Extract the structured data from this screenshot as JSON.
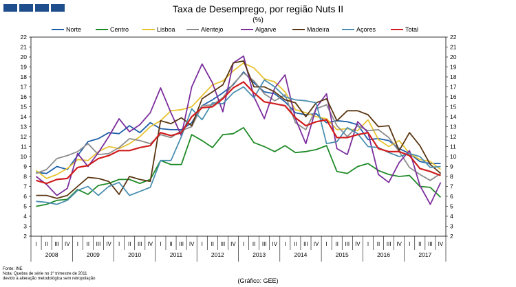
{
  "logo": {
    "name": "logo-blocks"
  },
  "chart_data": {
    "type": "line",
    "title": "Taxa de Desemprego, por região Nuts II",
    "unit": "(%)",
    "ylim": [
      2,
      22
    ],
    "yticks": [
      2,
      3,
      4,
      5,
      6,
      7,
      8,
      9,
      10,
      11,
      12,
      13,
      14,
      15,
      16,
      17,
      18,
      19,
      20,
      21,
      22
    ],
    "quarter_labels": [
      "I",
      "II",
      "III",
      "IV"
    ],
    "years": [
      "2008",
      "2009",
      "2010",
      "2011",
      "2012",
      "2013",
      "2014",
      "2015",
      "2016",
      "2017"
    ],
    "categories": [
      "2008 I",
      "2008 II",
      "2008 III",
      "2008 IV",
      "2009 I",
      "2009 II",
      "2009 III",
      "2009 IV",
      "2010 I",
      "2010 II",
      "2010 III",
      "2010 IV",
      "2011 I",
      "2011 II",
      "2011 III",
      "2011 IV",
      "2012 I",
      "2012 II",
      "2012 III",
      "2012 IV",
      "2013 I",
      "2013 II",
      "2013 III",
      "2013 IV",
      "2014 I",
      "2014 II",
      "2014 III",
      "2014 IV",
      "2015 I",
      "2015 II",
      "2015 III",
      "2015 IV",
      "2016 I",
      "2016 II",
      "2016 III",
      "2016 IV",
      "2017 I",
      "2017 II",
      "2017 III",
      "2017 IV"
    ],
    "legend_position": "top",
    "series": [
      {
        "name": "Norte",
        "color": "#1f5fa8",
        "values": [
          8.4,
          8.3,
          9.0,
          8.7,
          10.1,
          11.5,
          11.8,
          12.4,
          12.3,
          13.1,
          12.4,
          13.4,
          12.8,
          12.7,
          12.7,
          13.4,
          15.1,
          15.7,
          16.4,
          17.2,
          18.5,
          17.4,
          16.5,
          16.3,
          15.5,
          14.4,
          14.2,
          14.3,
          13.4,
          13.6,
          13.5,
          13.2,
          11.7,
          11.8,
          11.6,
          10.8,
          10.3,
          9.5,
          9.3,
          9.3
        ]
      },
      {
        "name": "Centro",
        "color": "#1e8a26",
        "values": [
          5.0,
          5.2,
          5.6,
          5.7,
          6.7,
          6.2,
          7.1,
          7.3,
          7.7,
          7.7,
          7.3,
          7.7,
          9.6,
          9.2,
          9.2,
          12.2,
          11.6,
          10.9,
          12.2,
          12.3,
          12.9,
          11.4,
          11.0,
          10.5,
          11.1,
          10.4,
          10.5,
          10.7,
          11.1,
          8.5,
          8.3,
          9.0,
          9.3,
          8.6,
          8.2,
          8.0,
          8.1,
          7.0,
          6.9,
          5.9
        ]
      },
      {
        "name": "Lisboa",
        "color": "#e8c330",
        "values": [
          8.6,
          7.8,
          8.2,
          8.8,
          9.7,
          9.6,
          10.5,
          11.0,
          10.8,
          11.3,
          12.0,
          13.0,
          13.6,
          14.6,
          14.7,
          15.0,
          16.1,
          17.2,
          17.6,
          18.6,
          19.4,
          18.9,
          17.8,
          17.5,
          16.5,
          14.7,
          14.4,
          14.0,
          13.8,
          12.7,
          12.8,
          12.6,
          13.7,
          11.7,
          11.0,
          11.6,
          10.3,
          9.7,
          9.5,
          8.7
        ]
      },
      {
        "name": "Alentejo",
        "color": "#8c8c8c",
        "values": [
          8.3,
          8.7,
          9.8,
          10.1,
          10.5,
          11.3,
          10.2,
          10.3,
          10.9,
          11.8,
          11.6,
          11.3,
          12.2,
          11.9,
          12.6,
          13.0,
          15.1,
          15.2,
          15.9,
          17.3,
          18.4,
          17.6,
          16.3,
          15.6,
          16.2,
          13.4,
          12.7,
          14.8,
          15.2,
          13.1,
          12.0,
          13.1,
          12.6,
          12.7,
          11.9,
          10.5,
          8.9,
          8.2,
          7.6,
          8.3
        ]
      },
      {
        "name": "Algarve",
        "color": "#7b2e9c",
        "values": [
          8.0,
          7.2,
          6.1,
          6.8,
          10.3,
          9.0,
          10.4,
          12.0,
          13.8,
          12.5,
          13.2,
          14.4,
          16.9,
          14.4,
          12.1,
          17.0,
          19.3,
          17.4,
          14.5,
          19.4,
          20.1,
          16.0,
          13.8,
          16.9,
          18.2,
          13.8,
          11.3,
          14.9,
          16.3,
          10.8,
          10.2,
          13.5,
          12.4,
          8.2,
          7.4,
          9.4,
          10.6,
          7.1,
          5.2,
          7.4
        ]
      },
      {
        "name": "Madeira",
        "color": "#5a3512",
        "values": [
          6.1,
          6.1,
          5.8,
          6.1,
          7.0,
          7.9,
          7.8,
          7.5,
          6.2,
          8.0,
          7.7,
          7.5,
          13.6,
          13.3,
          13.9,
          13.1,
          15.8,
          16.5,
          17.2,
          19.4,
          19.6,
          17.0,
          17.0,
          16.5,
          15.7,
          15.4,
          14.0,
          15.4,
          15.8,
          13.6,
          14.6,
          14.6,
          14.2,
          13.0,
          13.1,
          10.6,
          12.4,
          11.1,
          9.2,
          8.3
        ]
      },
      {
        "name": "Açores",
        "color": "#4a8fb0",
        "values": [
          5.5,
          5.4,
          5.2,
          5.6,
          6.6,
          7.0,
          6.1,
          7.0,
          7.4,
          6.1,
          6.5,
          6.9,
          9.6,
          9.6,
          12.0,
          14.8,
          13.7,
          15.4,
          15.3,
          16.4,
          17.0,
          15.9,
          17.7,
          17.0,
          16.0,
          15.7,
          15.6,
          15.4,
          11.3,
          11.5,
          12.9,
          12.3,
          11.0,
          10.9,
          10.4,
          10.0,
          10.3,
          10.0,
          8.9,
          9.0
        ]
      },
      {
        "name": "Total",
        "color": "#d01c1c",
        "values": [
          7.6,
          7.3,
          7.7,
          7.8,
          8.9,
          9.1,
          9.8,
          10.1,
          10.6,
          10.6,
          10.9,
          11.1,
          12.4,
          12.1,
          12.4,
          14.0,
          14.9,
          15.0,
          15.8,
          16.9,
          17.5,
          16.4,
          15.5,
          15.3,
          15.1,
          13.9,
          13.1,
          13.5,
          13.7,
          11.9,
          11.9,
          12.2,
          12.4,
          10.8,
          10.5,
          10.5,
          10.1,
          8.8,
          8.5,
          8.1
        ]
      }
    ]
  },
  "footnotes": {
    "line1": "Fonte: INE",
    "line2": "Nota: Quebra de série no 1º trimestre de 2011",
    "line3": "devido à alteração metodológica sem retropolação"
  },
  "credit": "(Gráfico: GEE)"
}
